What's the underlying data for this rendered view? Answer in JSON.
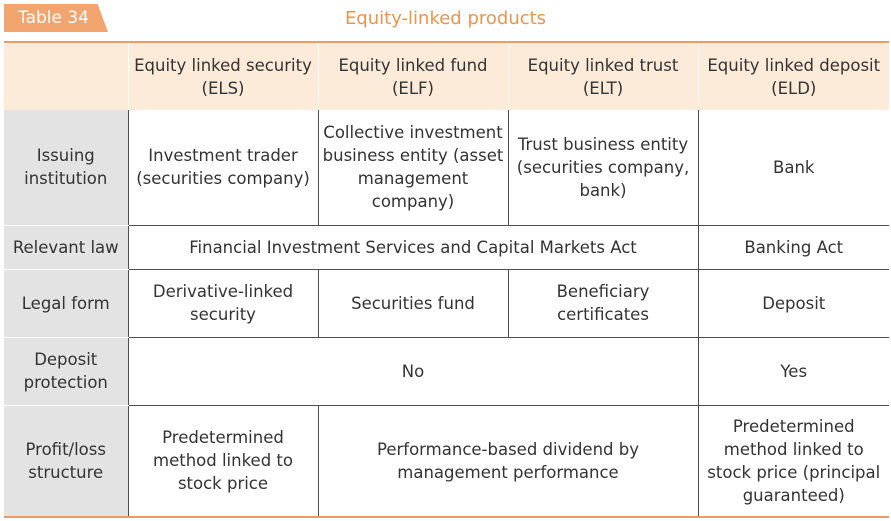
{
  "table_tag": "Table 34",
  "title": "Equity-linked products",
  "columns": [
    "",
    "Equity linked security (ELS)",
    "Equity linked fund (ELF)",
    "Equity linked trust (ELT)",
    "Equity linked deposit (ELD)"
  ],
  "rows": {
    "issuing": {
      "label": "Issuing institution",
      "els": "Investment trader (securities company)",
      "elf": "Collective investment business entity (asset management company)",
      "elt": "Trust business entity (securities company, bank)",
      "eld": "Bank"
    },
    "law": {
      "label": "Relevant law",
      "els_elf_elt": "Financial Investment Services and Capital Markets Act",
      "eld": "Banking Act"
    },
    "legal_form": {
      "label": "Legal form",
      "els": "Derivative-linked security",
      "elf": "Securities fund",
      "elt": "Beneficiary certificates",
      "eld": "Deposit"
    },
    "deposit_protection": {
      "label": "Deposit protection",
      "els_elf_elt": "No",
      "eld": "Yes"
    },
    "profit_loss": {
      "label": "Profit/loss structure",
      "els": "Predetermined method linked to stock price",
      "elf_elt": "Performance-based dividend by management performance",
      "eld": "Predetermined method linked to stock price (principal guaranteed)"
    }
  }
}
